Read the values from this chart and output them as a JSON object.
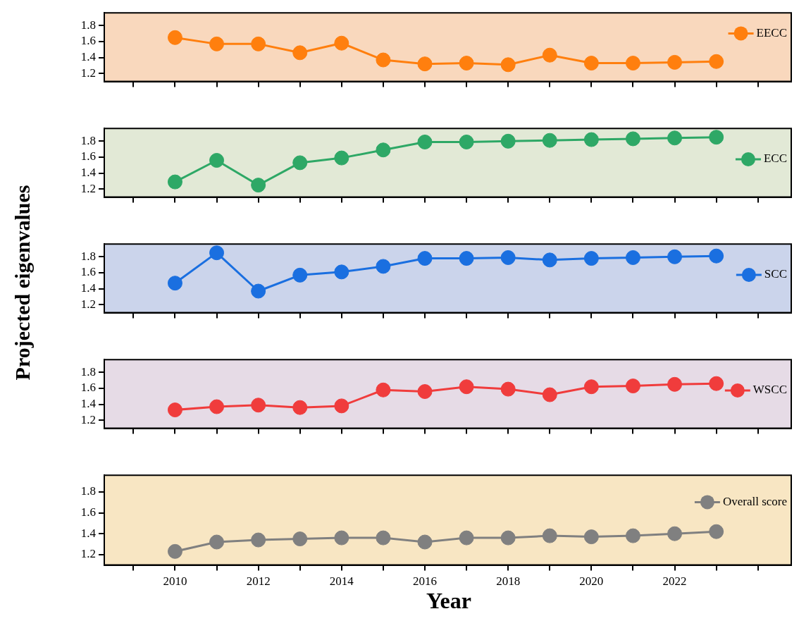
{
  "chart_data": [
    {
      "type": "line",
      "x": [
        2010,
        2011,
        2012,
        2013,
        2014,
        2015,
        2016,
        2017,
        2018,
        2019,
        2020,
        2021,
        2022,
        2023
      ],
      "series": [
        {
          "name": "EECC",
          "color": "#ff7f0e",
          "values": [
            1.65,
            1.57,
            1.57,
            1.46,
            1.58,
            1.37,
            1.32,
            1.33,
            1.31,
            1.43,
            1.33,
            1.33,
            1.34,
            1.35
          ]
        }
      ],
      "xlim": [
        2008.3,
        2024.8
      ],
      "ylim": [
        1.1,
        1.96
      ],
      "xticks": [
        {
          "value": 2009,
          "label": null
        },
        {
          "value": 2010,
          "label": null
        },
        {
          "value": 2011,
          "label": null
        },
        {
          "value": 2012,
          "label": null
        },
        {
          "value": 2013,
          "label": null
        },
        {
          "value": 2014,
          "label": null
        },
        {
          "value": 2015,
          "label": null
        },
        {
          "value": 2016,
          "label": null
        },
        {
          "value": 2017,
          "label": null
        },
        {
          "value": 2018,
          "label": null
        },
        {
          "value": 2019,
          "label": null
        },
        {
          "value": 2020,
          "label": null
        },
        {
          "value": 2021,
          "label": null
        },
        {
          "value": 2022,
          "label": null
        },
        {
          "value": 2023,
          "label": null
        },
        {
          "value": 2024,
          "label": null
        }
      ],
      "yticks": [
        1.2,
        1.4,
        1.6,
        1.8
      ],
      "tick_labels": "y",
      "legend": "top right",
      "marker": "circle",
      "grid": false
    },
    {
      "type": "line",
      "x": [
        2010,
        2011,
        2012,
        2013,
        2014,
        2015,
        2016,
        2017,
        2018,
        2019,
        2020,
        2021,
        2022,
        2023
      ],
      "series": [
        {
          "name": "ECC",
          "color": "#2ea866",
          "values": [
            1.29,
            1.56,
            1.25,
            1.53,
            1.59,
            1.69,
            1.79,
            1.79,
            1.8,
            1.81,
            1.82,
            1.83,
            1.84,
            1.85
          ]
        }
      ],
      "xlim": [
        2008.3,
        2024.8
      ],
      "ylim": [
        1.1,
        1.96
      ],
      "xticks": [
        {
          "value": 2009,
          "label": null
        },
        {
          "value": 2010,
          "label": null
        },
        {
          "value": 2011,
          "label": null
        },
        {
          "value": 2012,
          "label": null
        },
        {
          "value": 2013,
          "label": null
        },
        {
          "value": 2014,
          "label": null
        },
        {
          "value": 2015,
          "label": null
        },
        {
          "value": 2016,
          "label": null
        },
        {
          "value": 2017,
          "label": null
        },
        {
          "value": 2018,
          "label": null
        },
        {
          "value": 2019,
          "label": null
        },
        {
          "value": 2020,
          "label": null
        },
        {
          "value": 2021,
          "label": null
        },
        {
          "value": 2022,
          "label": null
        },
        {
          "value": 2023,
          "label": null
        },
        {
          "value": 2024,
          "label": null
        }
      ],
      "yticks": [
        1.2,
        1.4,
        1.6,
        1.8
      ],
      "tick_labels": "y",
      "legend": "right",
      "marker": "circle",
      "grid": false
    },
    {
      "type": "line",
      "x": [
        2010,
        2011,
        2012,
        2013,
        2014,
        2015,
        2016,
        2017,
        2018,
        2019,
        2020,
        2021,
        2022,
        2023
      ],
      "series": [
        {
          "name": "SCC",
          "color": "#1a6fe0",
          "values": [
            1.47,
            1.85,
            1.37,
            1.57,
            1.61,
            1.68,
            1.78,
            1.78,
            1.79,
            1.76,
            1.78,
            1.79,
            1.8,
            1.81
          ]
        }
      ],
      "ylabel": "Projected eigenvalues",
      "xlim": [
        2008.3,
        2024.8
      ],
      "ylim": [
        1.1,
        1.96
      ],
      "xticks": [
        {
          "value": 2009,
          "label": null
        },
        {
          "value": 2010,
          "label": null
        },
        {
          "value": 2011,
          "label": null
        },
        {
          "value": 2012,
          "label": null
        },
        {
          "value": 2013,
          "label": null
        },
        {
          "value": 2014,
          "label": null
        },
        {
          "value": 2015,
          "label": null
        },
        {
          "value": 2016,
          "label": null
        },
        {
          "value": 2017,
          "label": null
        },
        {
          "value": 2018,
          "label": null
        },
        {
          "value": 2019,
          "label": null
        },
        {
          "value": 2020,
          "label": null
        },
        {
          "value": 2021,
          "label": null
        },
        {
          "value": 2022,
          "label": null
        },
        {
          "value": 2023,
          "label": null
        },
        {
          "value": 2024,
          "label": null
        }
      ],
      "yticks": [
        1.2,
        1.4,
        1.6,
        1.8
      ],
      "tick_labels": "y",
      "legend": "right",
      "marker": "circle",
      "grid": false
    },
    {
      "type": "line",
      "x": [
        2010,
        2011,
        2012,
        2013,
        2014,
        2015,
        2016,
        2017,
        2018,
        2019,
        2020,
        2021,
        2022,
        2023
      ],
      "series": [
        {
          "name": "WSCC",
          "color": "#f03c3c",
          "values": [
            1.33,
            1.37,
            1.39,
            1.36,
            1.38,
            1.58,
            1.56,
            1.62,
            1.59,
            1.52,
            1.62,
            1.63,
            1.65,
            1.66
          ]
        }
      ],
      "xlim": [
        2008.3,
        2024.8
      ],
      "ylim": [
        1.1,
        1.96
      ],
      "xticks": [
        {
          "value": 2009,
          "label": null
        },
        {
          "value": 2010,
          "label": null
        },
        {
          "value": 2011,
          "label": null
        },
        {
          "value": 2012,
          "label": null
        },
        {
          "value": 2013,
          "label": null
        },
        {
          "value": 2014,
          "label": null
        },
        {
          "value": 2015,
          "label": null
        },
        {
          "value": 2016,
          "label": null
        },
        {
          "value": 2017,
          "label": null
        },
        {
          "value": 2018,
          "label": null
        },
        {
          "value": 2019,
          "label": null
        },
        {
          "value": 2020,
          "label": null
        },
        {
          "value": 2021,
          "label": null
        },
        {
          "value": 2022,
          "label": null
        },
        {
          "value": 2023,
          "label": null
        },
        {
          "value": 2024,
          "label": null
        }
      ],
      "yticks": [
        1.2,
        1.4,
        1.6,
        1.8
      ],
      "tick_labels": "y",
      "legend": "right",
      "marker": "circle",
      "grid": false
    },
    {
      "type": "line",
      "x": [
        2010,
        2011,
        2012,
        2013,
        2014,
        2015,
        2016,
        2017,
        2018,
        2019,
        2020,
        2021,
        2022,
        2023
      ],
      "series": [
        {
          "name": "Overall score",
          "color": "#808080",
          "values": [
            1.23,
            1.32,
            1.34,
            1.35,
            1.36,
            1.36,
            1.32,
            1.36,
            1.36,
            1.38,
            1.37,
            1.38,
            1.4,
            1.42
          ]
        }
      ],
      "xlabel": "Year",
      "xlim": [
        2008.3,
        2024.8
      ],
      "ylim": [
        1.1,
        1.96
      ],
      "xticks": [
        {
          "value": 2009,
          "label": null
        },
        2010,
        {
          "value": 2011,
          "label": null
        },
        2012,
        {
          "value": 2013,
          "label": null
        },
        2014,
        {
          "value": 2015,
          "label": null
        },
        2016,
        {
          "value": 2017,
          "label": null
        },
        2018,
        {
          "value": 2019,
          "label": null
        },
        2020,
        {
          "value": 2021,
          "label": null
        },
        2022,
        {
          "value": 2023,
          "label": null
        },
        {
          "value": 2024,
          "label": null
        }
      ],
      "yticks": [
        1.2,
        1.4,
        1.6,
        1.8
      ],
      "legend": "top right",
      "marker": "circle",
      "grid": false
    }
  ]
}
